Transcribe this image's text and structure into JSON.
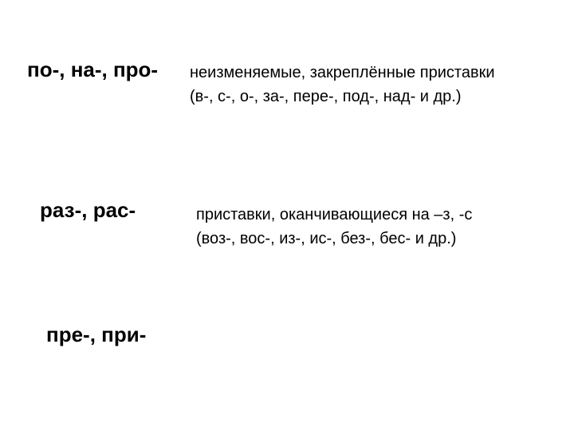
{
  "background_color": "#ffffff",
  "text_color": "#000000",
  "heading_font_size": 26,
  "heading_font_weight": "bold",
  "desc_font_size": 20,
  "rows": [
    {
      "heading": "по-,  на-,  про-",
      "desc_line1": "неизменяемые, закреплённые приставки",
      "desc_line2": "(в-, с-, о-, за-, пере-, под-, над- и др.)"
    },
    {
      "heading": "раз-, рас-",
      "desc_line1": "приставки, оканчивающиеся  на –з, -с",
      "desc_line2": "(воз-, вос-, из-, ис-, без-, бес- и др.)"
    },
    {
      "heading": "пре-, при-"
    }
  ]
}
